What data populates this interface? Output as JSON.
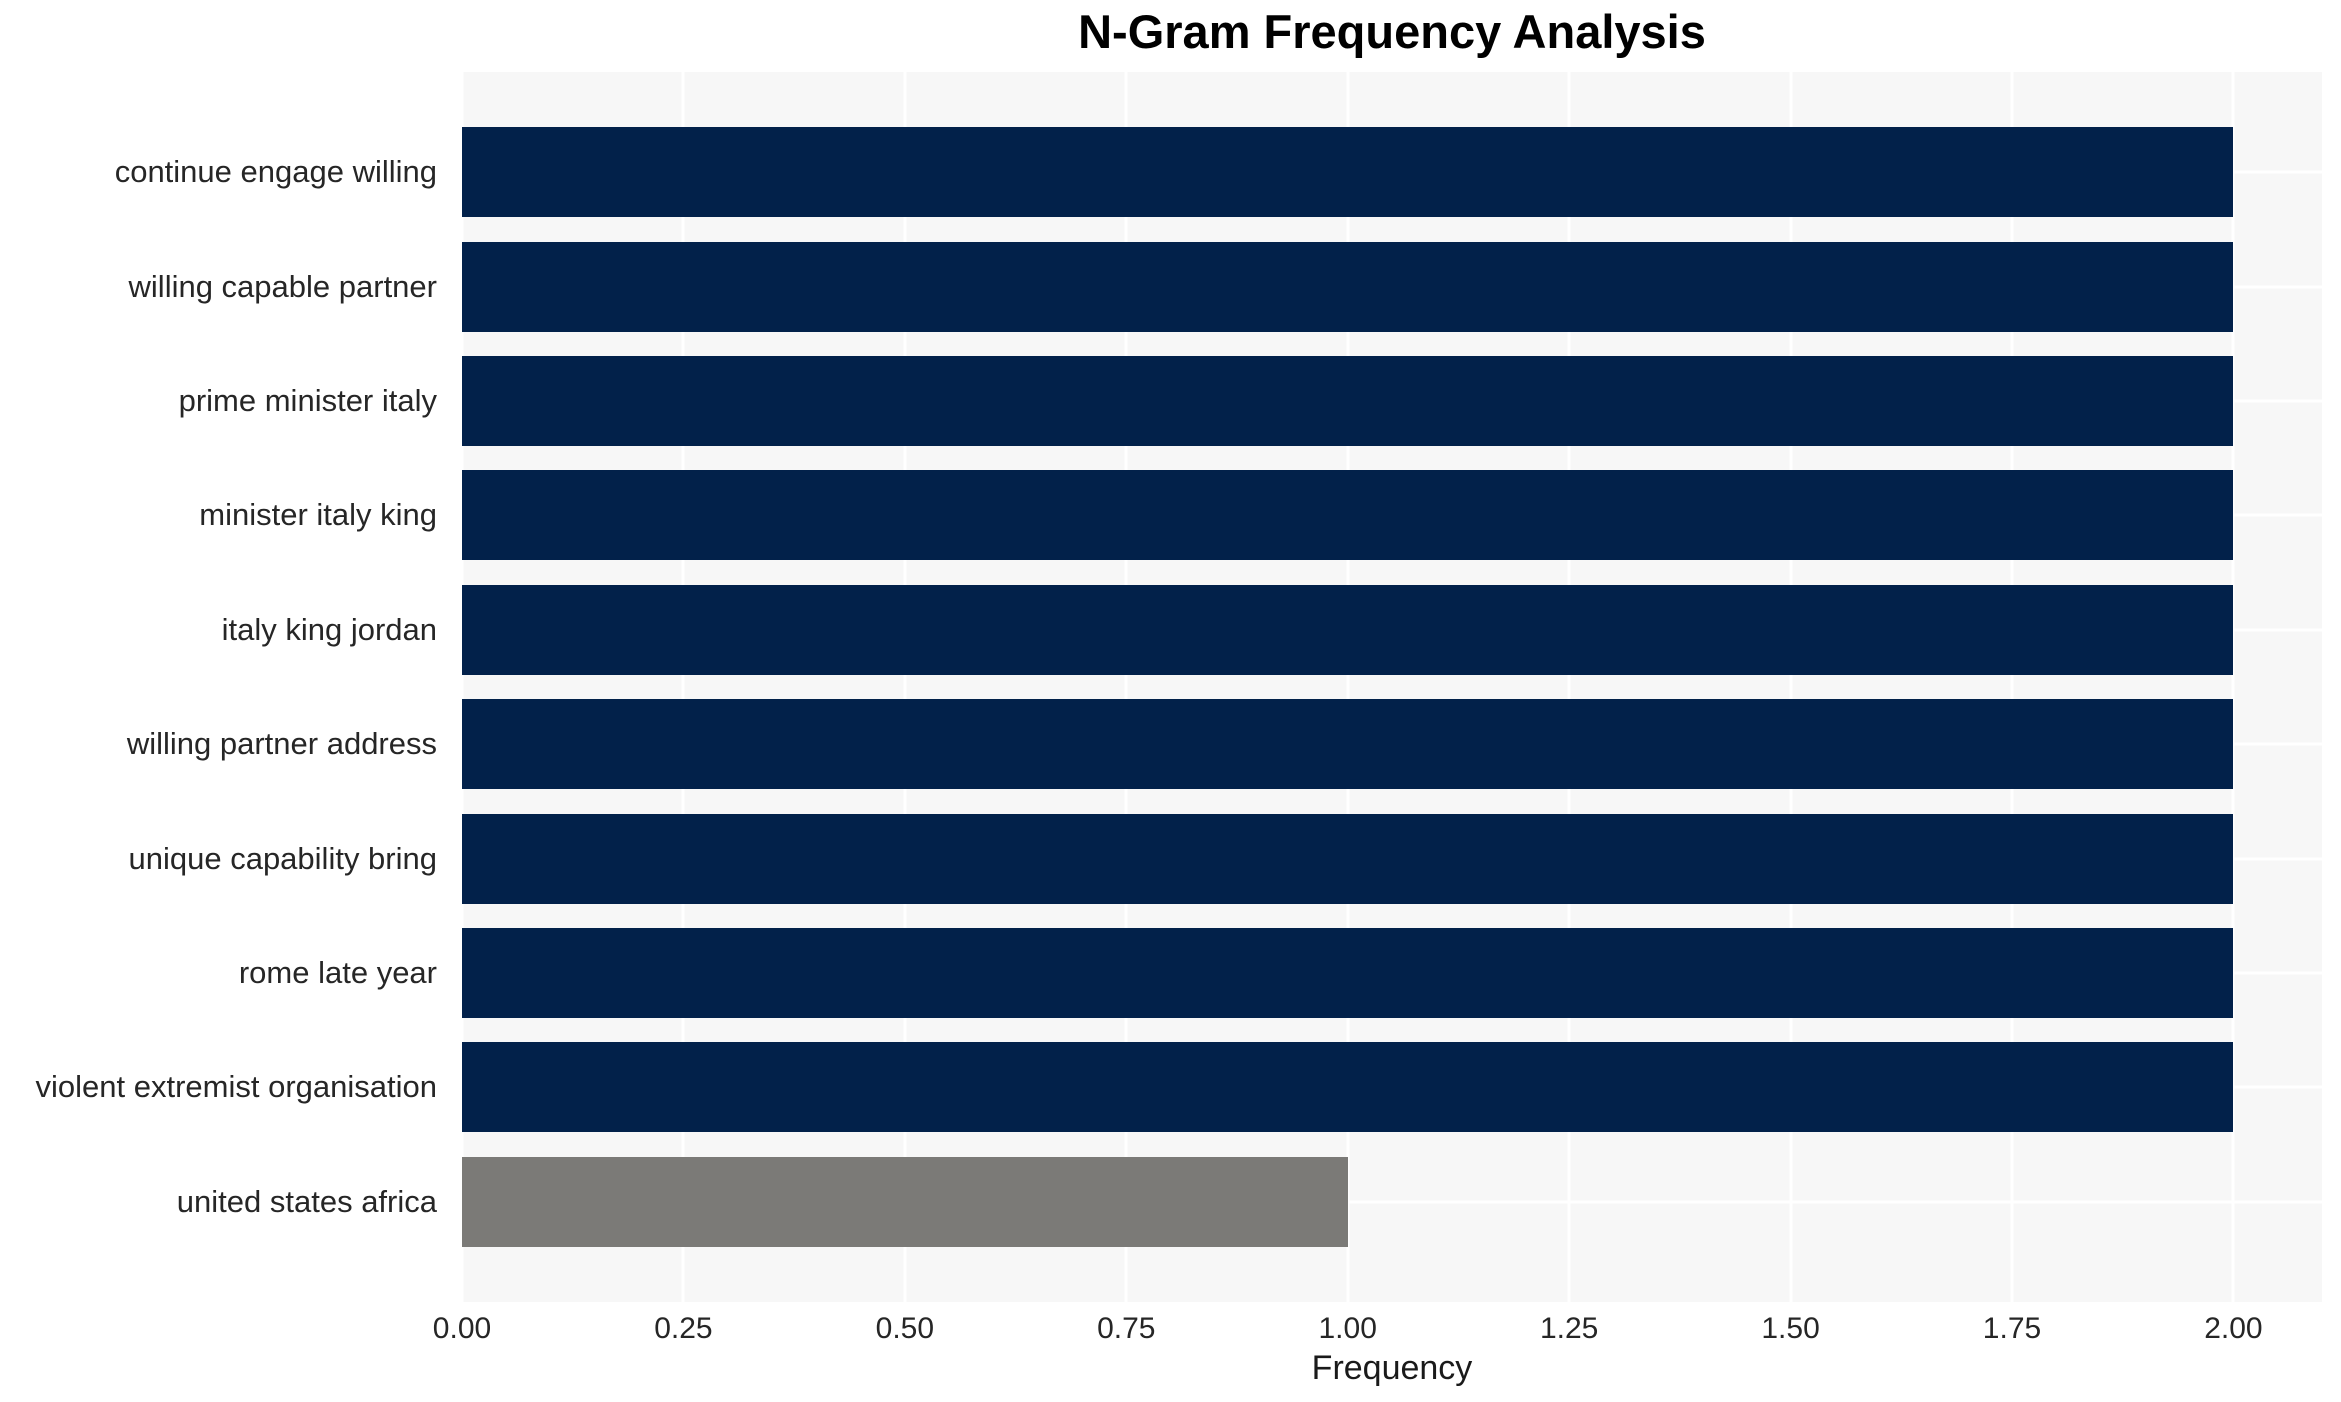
{
  "chart_data": {
    "type": "bar",
    "orientation": "horizontal",
    "title": "N-Gram Frequency Analysis",
    "xlabel": "Frequency",
    "ylabel": "",
    "categories": [
      "continue engage willing",
      "willing capable partner",
      "prime minister italy",
      "minister italy king",
      "italy king jordan",
      "willing partner address",
      "unique capability bring",
      "rome late year",
      "violent extremist organisation",
      "united states africa"
    ],
    "values": [
      2,
      2,
      2,
      2,
      2,
      2,
      2,
      2,
      2,
      1
    ],
    "bar_colors": [
      "#02214a",
      "#02214a",
      "#02214a",
      "#02214a",
      "#02214a",
      "#02214a",
      "#02214a",
      "#02214a",
      "#02214a",
      "#7b7a77"
    ],
    "xlim": [
      0,
      2.1
    ],
    "xticks": [
      0.0,
      0.25,
      0.5,
      0.75,
      1.0,
      1.25,
      1.5,
      1.75,
      2.0
    ],
    "xtick_labels": [
      "0.00",
      "0.25",
      "0.50",
      "0.75",
      "1.00",
      "1.25",
      "1.50",
      "1.75",
      "2.00"
    ],
    "grid": true,
    "legend": false,
    "plot_bg": "#f7f7f7",
    "grid_color": "#ffffff",
    "accent_color": "#02214a",
    "muted_color": "#7b7a77"
  }
}
